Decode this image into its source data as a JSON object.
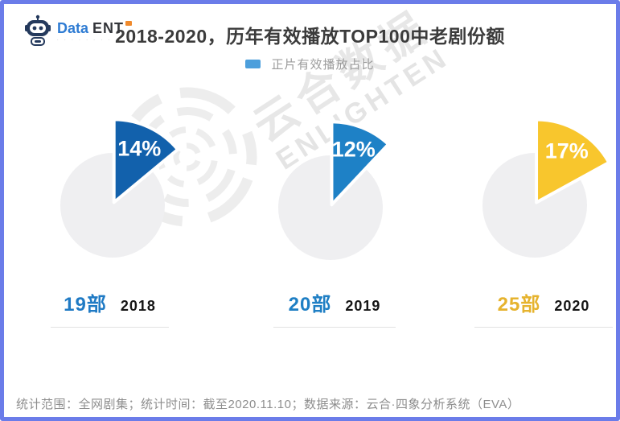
{
  "frame": {
    "border_color": "#6b7ce9"
  },
  "logo": {
    "text_primary": "Data",
    "text_secondary": "ENT",
    "tagline_dots": "· · · · · · · ·",
    "badge_color": "#f08a2c"
  },
  "header": {
    "title": "2018-2020，历年有效播放TOP100中老剧份额"
  },
  "legend": {
    "label": "正片有效播放占比",
    "swatch_color": "#4d9fdc"
  },
  "watermark": {
    "line1": "云合数据",
    "line2": "ENLIGHTEN"
  },
  "chart_data": {
    "type": "pie",
    "title": "2018-2020，历年有效播放TOP100中老剧份额",
    "legend": [
      "正片有效播放占比"
    ],
    "series_name": "正片有效播放占比",
    "categories": [
      "2018",
      "2019",
      "2020"
    ],
    "values_pct": [
      14,
      12,
      17
    ],
    "remainder_color": "#efeff1",
    "groups": [
      {
        "year": "2018",
        "share_pct": 14,
        "share_label": "14%",
        "count_label": "19部",
        "slice_color": "#1261ac",
        "count_color": "#1f7ac4"
      },
      {
        "year": "2019",
        "share_pct": 12,
        "share_label": "12%",
        "count_label": "20部",
        "slice_color": "#1e81c6",
        "count_color": "#1f7fc4"
      },
      {
        "year": "2020",
        "share_pct": 17,
        "share_label": "17%",
        "count_label": "25部",
        "slice_color": "#f8c62d",
        "count_color": "#e6b32e"
      }
    ]
  },
  "footer": {
    "note": "统计范围：全网剧集；统计时间：截至2020.11.10；数据来源：云合·四象分析系统（EVA）"
  }
}
